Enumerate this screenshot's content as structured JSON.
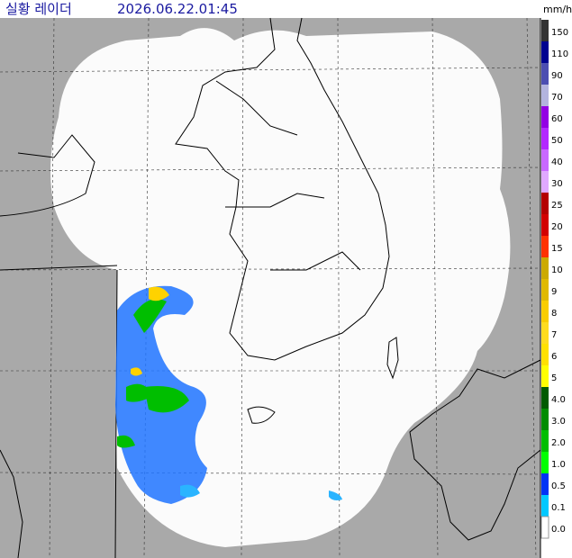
{
  "header": {
    "title": "실황 레이더",
    "timestamp": "2026.06.22.01:45"
  },
  "legend": {
    "unit": "mm/h",
    "items": [
      {
        "label": "150",
        "color": "#333333"
      },
      {
        "label": "110",
        "color": "#000390"
      },
      {
        "label": "90",
        "color": "#4c4eb1"
      },
      {
        "label": "70",
        "color": "#b3b4de"
      },
      {
        "label": "60",
        "color": "#9300e4"
      },
      {
        "label": "50",
        "color": "#b329ff"
      },
      {
        "label": "40",
        "color": "#c969ff"
      },
      {
        "label": "30",
        "color": "#e0a9ff"
      },
      {
        "label": "25",
        "color": "#b40000"
      },
      {
        "label": "20",
        "color": "#d20000"
      },
      {
        "label": "15",
        "color": "#ff3200"
      },
      {
        "label": "10",
        "color": "#ccaa00"
      },
      {
        "label": "9",
        "color": "#e0b900"
      },
      {
        "label": "8",
        "color": "#f9cd00"
      },
      {
        "label": "7",
        "color": "#ffdc1f"
      },
      {
        "label": "6",
        "color": "#ffe100"
      },
      {
        "label": "5",
        "color": "#ffff00"
      },
      {
        "label": "4.0",
        "color": "#005a00"
      },
      {
        "label": "3.0",
        "color": "#008c00"
      },
      {
        "label": "2.0",
        "color": "#00be00"
      },
      {
        "label": "1.0",
        "color": "#00ff00"
      },
      {
        "label": "0.5",
        "color": "#0033f5"
      },
      {
        "label": "0.1",
        "color": "#00c8ff"
      },
      {
        "label": "0.0",
        "color": "#ffffff"
      }
    ]
  }
}
